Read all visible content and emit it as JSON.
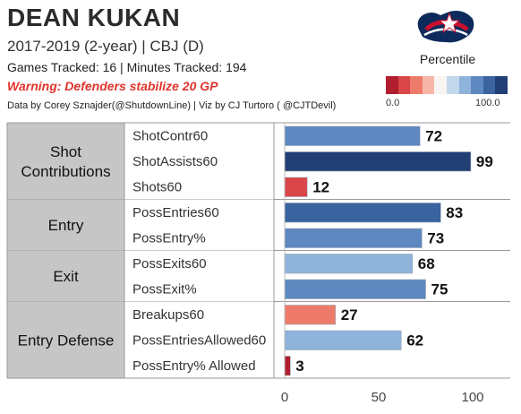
{
  "header": {
    "title": "DEAN KUKAN",
    "subtitle": "2017-2019 (2-year) | CBJ (D)",
    "tracked": "Games Tracked: 16  | Minutes Tracked: 194",
    "warning": "Warning: Defenders stabilize 20 GP",
    "credits": "Data by Corey Sznajder(@ShutdownLine) | Viz by CJ Turtoro ( @CJTDevil)"
  },
  "logo": {
    "icon": "columbus-blue-jackets-logo-icon",
    "colors": [
      "#0d2a5c",
      "#c8102e",
      "#ffffff"
    ]
  },
  "legend": {
    "title": "Percentile",
    "min_label": "0.0",
    "max_label": "100.0",
    "colors": [
      "#b01e2f",
      "#d9464a",
      "#ee7b6a",
      "#f6b6a8",
      "#f7f4f2",
      "#c3d8ec",
      "#8fb3da",
      "#5e88c0",
      "#3a63a0",
      "#213f75"
    ]
  },
  "chart_data": {
    "type": "bar",
    "orientation": "horizontal",
    "xlim": [
      0,
      120
    ],
    "xticks": [
      0,
      50,
      100
    ],
    "grid": false,
    "groups": [
      {
        "name": "Shot Contributions",
        "metrics": [
          {
            "label": "ShotContr60",
            "value": 72
          },
          {
            "label": "ShotAssists60",
            "value": 99
          },
          {
            "label": "Shots60",
            "value": 12
          }
        ]
      },
      {
        "name": "Entry",
        "metrics": [
          {
            "label": "PossEntries60",
            "value": 83
          },
          {
            "label": "PossEntry%",
            "value": 73
          }
        ]
      },
      {
        "name": "Exit",
        "metrics": [
          {
            "label": "PossExits60",
            "value": 68
          },
          {
            "label": "PossExit%",
            "value": 75
          }
        ]
      },
      {
        "name": "Entry Defense",
        "metrics": [
          {
            "label": "Breakups60",
            "value": 27
          },
          {
            "label": "PossEntriesAllowed60",
            "value": 62
          },
          {
            "label": "PossEntry% Allowed",
            "value": 3
          }
        ]
      }
    ]
  }
}
